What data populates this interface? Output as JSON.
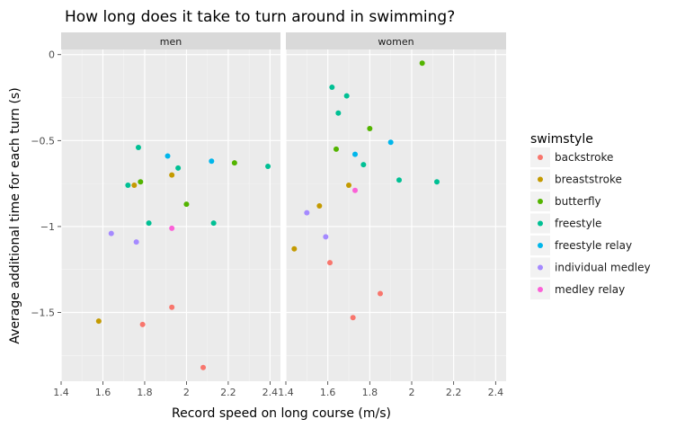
{
  "chart_data": {
    "type": "scatter",
    "title": "How long does it take to turn around in swimming?",
    "xlabel": "Record speed on long course (m/s)",
    "ylabel": "Average additional time for each turn (s)",
    "xlim": [
      1.4,
      2.45
    ],
    "ylim": [
      -1.9,
      0.03
    ],
    "x_ticks": [
      1.4,
      1.6,
      1.8,
      2.0,
      2.2,
      2.4
    ],
    "x_tick_labels": [
      "1.4",
      "1.6",
      "1.8",
      "2",
      "2.2",
      "2.4"
    ],
    "y_ticks": [
      0,
      -0.5,
      -1,
      -1.5
    ],
    "y_tick_labels": [
      "0",
      "−0.5",
      "−1",
      "−1.5"
    ],
    "grid": true,
    "legend_title": "swimstyle",
    "legend_position": "right",
    "panels": [
      "men",
      "women"
    ],
    "series": [
      {
        "name": "backstroke",
        "color": "#F8766D",
        "points": [
          {
            "panel": "men",
            "x": 1.79,
            "y": -1.57
          },
          {
            "panel": "men",
            "x": 1.93,
            "y": -1.47
          },
          {
            "panel": "men",
            "x": 2.08,
            "y": -1.82
          },
          {
            "panel": "women",
            "x": 1.61,
            "y": -1.21
          },
          {
            "panel": "women",
            "x": 1.72,
            "y": -1.53
          },
          {
            "panel": "women",
            "x": 1.85,
            "y": -1.39
          }
        ]
      },
      {
        "name": "breaststroke",
        "color": "#C49A00",
        "points": [
          {
            "panel": "men",
            "x": 1.58,
            "y": -1.55
          },
          {
            "panel": "men",
            "x": 1.75,
            "y": -0.76
          },
          {
            "panel": "men",
            "x": 1.93,
            "y": -0.7
          },
          {
            "panel": "women",
            "x": 1.44,
            "y": -1.13
          },
          {
            "panel": "women",
            "x": 1.56,
            "y": -0.88
          },
          {
            "panel": "women",
            "x": 1.7,
            "y": -0.76
          }
        ]
      },
      {
        "name": "butterfly",
        "color": "#53B400",
        "points": [
          {
            "panel": "men",
            "x": 1.78,
            "y": -0.74
          },
          {
            "panel": "men",
            "x": 2.0,
            "y": -0.87
          },
          {
            "panel": "men",
            "x": 2.23,
            "y": -0.63
          },
          {
            "panel": "women",
            "x": 1.64,
            "y": -0.55
          },
          {
            "panel": "women",
            "x": 1.8,
            "y": -0.43
          },
          {
            "panel": "women",
            "x": 2.05,
            "y": -0.05
          }
        ]
      },
      {
        "name": "freestyle",
        "color": "#00C094",
        "points": [
          {
            "panel": "men",
            "x": 1.72,
            "y": -0.76
          },
          {
            "panel": "men",
            "x": 1.77,
            "y": -0.54
          },
          {
            "panel": "men",
            "x": 1.82,
            "y": -0.98
          },
          {
            "panel": "men",
            "x": 1.96,
            "y": -0.66
          },
          {
            "panel": "men",
            "x": 2.13,
            "y": -0.98
          },
          {
            "panel": "men",
            "x": 2.39,
            "y": -0.65
          },
          {
            "panel": "women",
            "x": 1.62,
            "y": -0.19
          },
          {
            "panel": "women",
            "x": 1.65,
            "y": -0.34
          },
          {
            "panel": "women",
            "x": 1.69,
            "y": -0.24
          },
          {
            "panel": "women",
            "x": 1.77,
            "y": -0.64
          },
          {
            "panel": "women",
            "x": 1.94,
            "y": -0.73
          },
          {
            "panel": "women",
            "x": 2.12,
            "y": -0.74
          }
        ]
      },
      {
        "name": "freestyle relay",
        "color": "#00B6EB",
        "points": [
          {
            "panel": "men",
            "x": 1.91,
            "y": -0.59
          },
          {
            "panel": "men",
            "x": 2.12,
            "y": -0.62
          },
          {
            "panel": "women",
            "x": 1.73,
            "y": -0.58
          },
          {
            "panel": "women",
            "x": 1.9,
            "y": -0.51
          }
        ]
      },
      {
        "name": "individual medley",
        "color": "#A58AFF",
        "points": [
          {
            "panel": "men",
            "x": 1.64,
            "y": -1.04
          },
          {
            "panel": "men",
            "x": 1.76,
            "y": -1.09
          },
          {
            "panel": "women",
            "x": 1.5,
            "y": -0.92
          },
          {
            "panel": "women",
            "x": 1.59,
            "y": -1.06
          }
        ]
      },
      {
        "name": "medley relay",
        "color": "#FB61D7",
        "points": [
          {
            "panel": "men",
            "x": 1.93,
            "y": -1.01
          },
          {
            "panel": "women",
            "x": 1.73,
            "y": -0.79
          }
        ]
      }
    ]
  }
}
